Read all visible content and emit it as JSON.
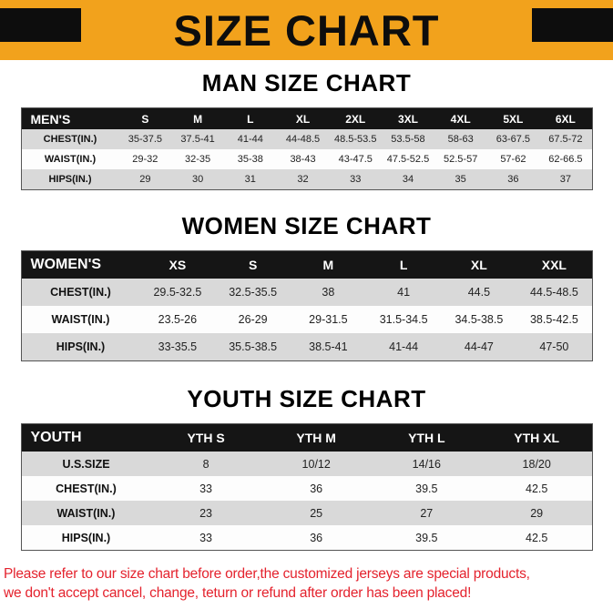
{
  "banner": {
    "title": "SIZE CHART",
    "bg_color": "#F2A21C",
    "corner_color": "#0D0D0D"
  },
  "sections": [
    {
      "heading": "MAN SIZE CHART",
      "table": {
        "header": [
          "MEN'S",
          "S",
          "M",
          "L",
          "XL",
          "2XL",
          "3XL",
          "4XL",
          "5XL",
          "6XL"
        ],
        "rows": [
          [
            "CHEST(IN.)",
            "35-37.5",
            "37.5-41",
            "41-44",
            "44-48.5",
            "48.5-53.5",
            "53.5-58",
            "58-63",
            "63-67.5",
            "67.5-72"
          ],
          [
            "WAIST(IN.)",
            "29-32",
            "32-35",
            "35-38",
            "38-43",
            "43-47.5",
            "47.5-52.5",
            "52.5-57",
            "57-62",
            "62-66.5"
          ],
          [
            "HIPS(IN.)",
            "29",
            "30",
            "31",
            "32",
            "33",
            "34",
            "35",
            "36",
            "37"
          ]
        ]
      }
    },
    {
      "heading": "WOMEN SIZE CHART",
      "table": {
        "header": [
          "WOMEN'S",
          "XS",
          "S",
          "M",
          "L",
          "XL",
          "XXL"
        ],
        "rows": [
          [
            "CHEST(IN.)",
            "29.5-32.5",
            "32.5-35.5",
            "38",
            "41",
            "44.5",
            "44.5-48.5"
          ],
          [
            "WAIST(IN.)",
            "23.5-26",
            "26-29",
            "29-31.5",
            "31.5-34.5",
            "34.5-38.5",
            "38.5-42.5"
          ],
          [
            "HIPS(IN.)",
            "33-35.5",
            "35.5-38.5",
            "38.5-41",
            "41-44",
            "44-47",
            "47-50"
          ]
        ]
      }
    },
    {
      "heading": "YOUTH SIZE CHART",
      "table": {
        "header": [
          "YOUTH",
          "YTH S",
          "YTH M",
          "YTH L",
          "YTH XL"
        ],
        "rows": [
          [
            "U.S.SIZE",
            "8",
            "10/12",
            "14/16",
            "18/20"
          ],
          [
            "CHEST(IN.)",
            "33",
            "36",
            "39.5",
            "42.5"
          ],
          [
            "WAIST(IN.)",
            "23",
            "25",
            "27",
            "29"
          ],
          [
            "HIPS(IN.)",
            "33",
            "36",
            "39.5",
            "42.5"
          ]
        ]
      }
    }
  ],
  "footer": {
    "line1": "Please refer to our size chart before order,the customized jerseys are special products,",
    "line2": "we don't accept cancel, change, teturn or refund after order has been placed!",
    "text_color": "#E4222D"
  },
  "colors": {
    "table_header_bg": "#151515",
    "row_shade": "#D9D9D9",
    "row_plain": "#FDFDFD"
  }
}
